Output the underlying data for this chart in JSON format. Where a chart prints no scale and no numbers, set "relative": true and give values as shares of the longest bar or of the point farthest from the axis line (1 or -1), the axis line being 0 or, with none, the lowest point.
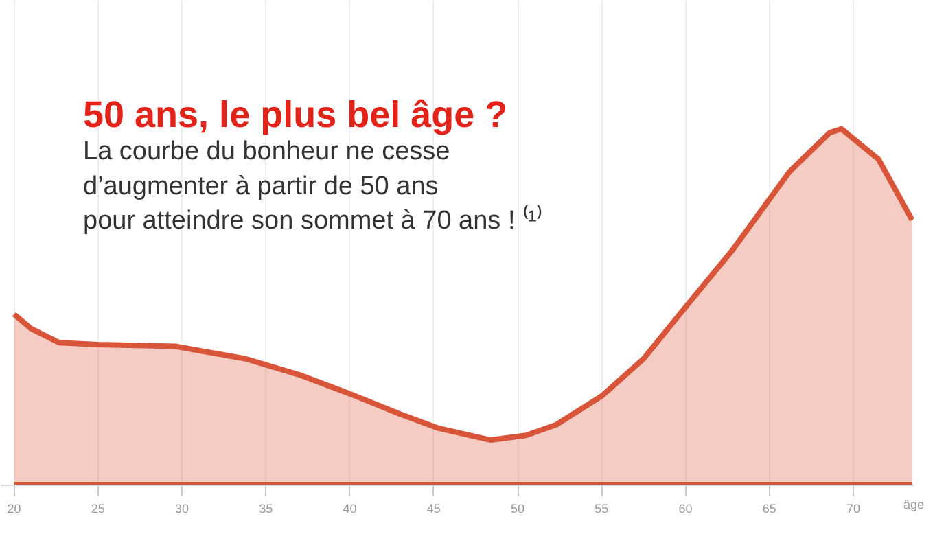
{
  "chart_data": {
    "type": "area",
    "title": "50 ans, le plus bel âge ?",
    "subtitle": "La courbe du bonheur ne cesse\nd’augmenter à partir de 50 ans\npour atteindre son sommet à 70 ans ! ⁽¹⁾",
    "xlabel": "âge",
    "relative": true,
    "x": [
      20,
      21,
      22.7,
      25,
      29.6,
      33.8,
      37,
      40.1,
      43,
      45.3,
      48.4,
      50.5,
      52.3,
      55,
      57.5,
      60,
      62.8,
      66.2,
      68.6,
      69.3,
      71.5,
      73.5
    ],
    "series": [
      {
        "color": "#d9553a",
        "values": [
          0.48,
          0.44,
          0.4,
          0.395,
          0.39,
          0.355,
          0.31,
          0.255,
          0.2,
          0.16,
          0.127,
          0.14,
          0.17,
          0.25,
          0.355,
          0.5,
          0.66,
          0.88,
          0.99,
          1.0,
          0.915,
          0.745
        ]
      }
    ],
    "xlim": [
      19.2,
      73.6
    ],
    "xticks": [
      20,
      25,
      30,
      35,
      40,
      45,
      50,
      55,
      60,
      65,
      70
    ],
    "grid": "x"
  }
}
